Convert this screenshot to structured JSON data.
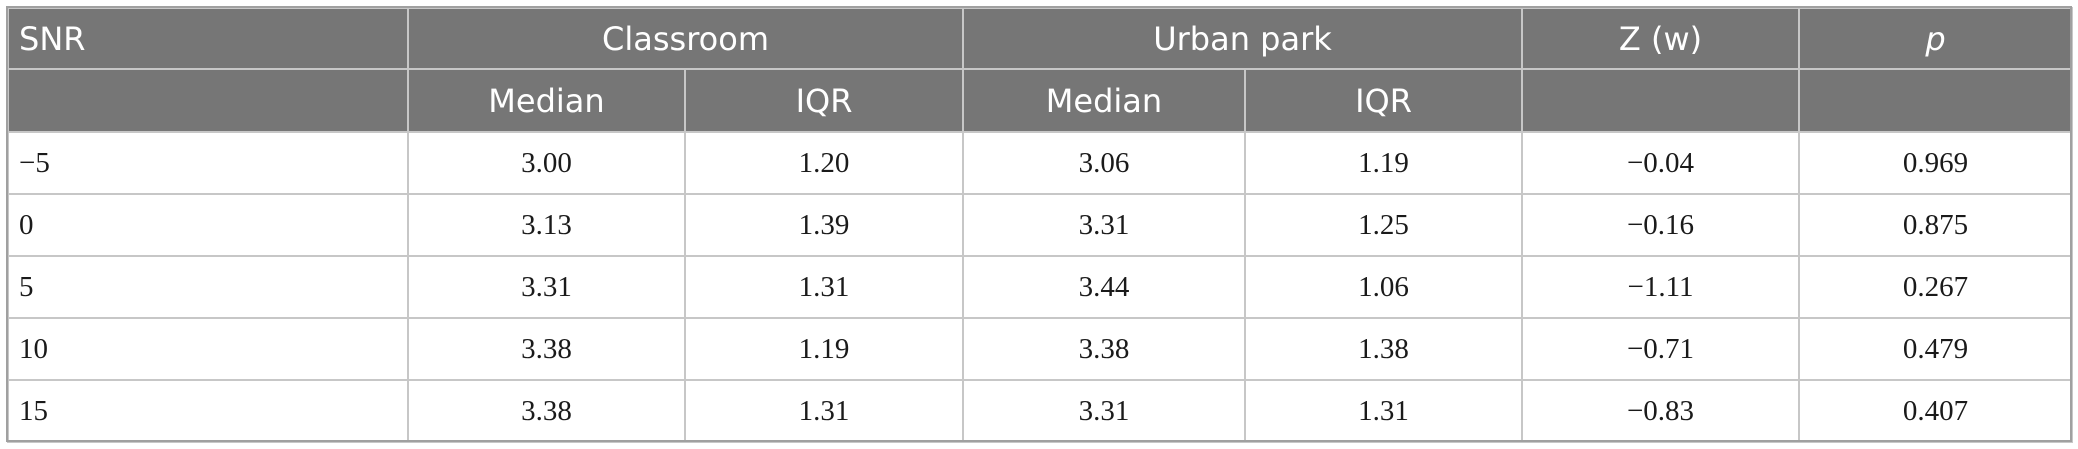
{
  "table": {
    "header": {
      "snr": "SNR",
      "classroom": "Classroom",
      "urban_park": "Urban park",
      "z": "Z (w)",
      "p": "p",
      "median_1": "Median",
      "iqr_1": "IQR",
      "median_2": "Median",
      "iqr_2": "IQR"
    },
    "rows": [
      [
        "−5",
        "3.00",
        "1.20",
        "3.06",
        "1.19",
        "−0.04",
        "0.969"
      ],
      [
        "0",
        "3.13",
        "1.39",
        "3.31",
        "1.25",
        "−0.16",
        "0.875"
      ],
      [
        "5",
        "3.31",
        "1.31",
        "3.44",
        "1.06",
        "−1.11",
        "0.267"
      ],
      [
        "10",
        "3.38",
        "1.19",
        "3.38",
        "1.38",
        "−0.71",
        "0.479"
      ],
      [
        "15",
        "3.38",
        "1.31",
        "3.31",
        "1.31",
        "−0.83",
        "0.407"
      ]
    ]
  }
}
